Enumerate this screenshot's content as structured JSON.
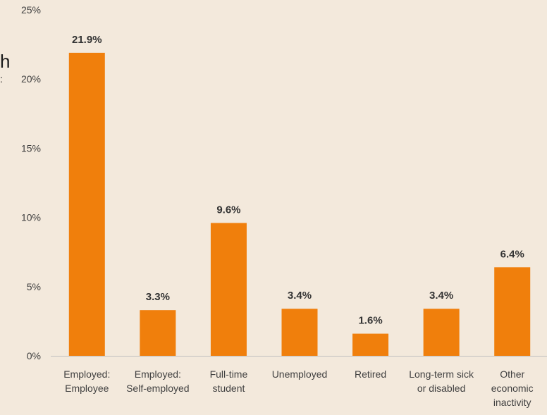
{
  "chart_data": {
    "type": "bar",
    "categories": [
      [
        "Employed:",
        "Employee"
      ],
      [
        "Employed:",
        "Self-employed"
      ],
      [
        "Full-time",
        "student"
      ],
      [
        "Unemployed"
      ],
      [
        "Retired"
      ],
      [
        "Long-term sick",
        "or disabled"
      ],
      [
        "Other",
        "economic",
        "inactivity"
      ]
    ],
    "values": [
      21.9,
      3.3,
      9.6,
      3.4,
      1.6,
      3.4,
      6.4
    ],
    "data_labels": [
      "21.9%",
      "3.3%",
      "9.6%",
      "3.4%",
      "1.6%",
      "3.4%",
      "6.4%"
    ],
    "y_ticks": [
      0,
      5,
      10,
      15,
      20,
      25
    ],
    "y_tick_labels": [
      "0%",
      "5%",
      "10%",
      "15%",
      "20%",
      "25%"
    ],
    "ylim": [
      0,
      25
    ],
    "grid": false,
    "colors": {
      "bar": "#f07f0c",
      "background": "#f3e9dc",
      "axis": "#bfbfbf",
      "text": "#404040",
      "label": "#333333"
    }
  },
  "clipped_text": {
    "line1": "h",
    "line2": ":"
  }
}
